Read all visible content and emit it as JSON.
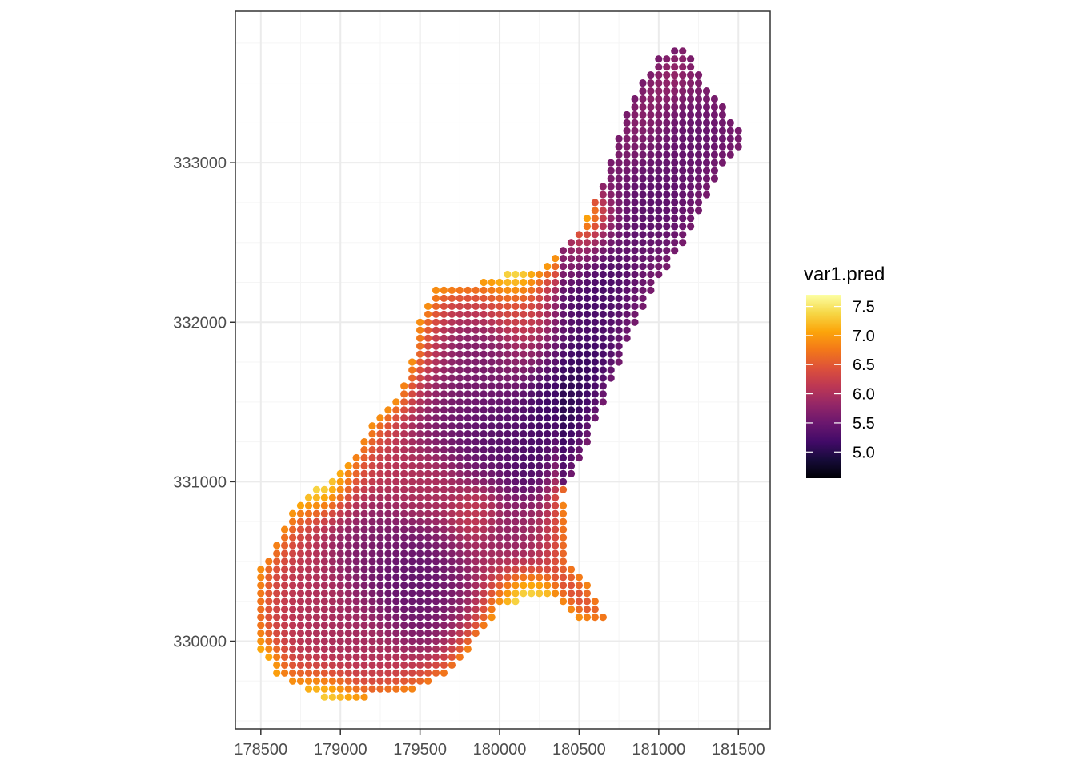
{
  "chart_data": {
    "type": "scatter",
    "title": "",
    "xlabel": "",
    "ylabel": "",
    "x_ticks": [
      178500,
      179000,
      179500,
      180000,
      180500,
      181000,
      181500
    ],
    "y_ticks": [
      330000,
      331000,
      332000,
      333000
    ],
    "x_tick_labels": [
      "178500",
      "179000",
      "179500",
      "180000",
      "180500",
      "181000",
      "181500"
    ],
    "y_tick_labels": [
      "330000",
      "331000",
      "332000",
      "333000"
    ],
    "xlim": [
      178340,
      181700
    ],
    "ylim": [
      329450,
      333950
    ],
    "grid": true,
    "grid_spacing_data": [
      250,
      500
    ],
    "grid_step": 50,
    "colormap": "inferno",
    "legend": {
      "title": "var1.pred",
      "placement": "right",
      "range": [
        4.55,
        7.7
      ],
      "breaks": [
        5.0,
        5.5,
        6.0,
        6.5,
        7.0,
        7.5
      ],
      "labels": [
        "5.0",
        "5.5",
        "6.0",
        "6.5",
        "7.0",
        "7.5"
      ]
    },
    "colors": {
      "panel_border": "#333333",
      "grid_major": "#ebebeb",
      "grid_minor": "#f5f5f5",
      "tick_text": "#4d4d4d"
    },
    "region_outline": [
      [
        178460,
        330150
      ],
      [
        178500,
        330450
      ],
      [
        178700,
        330800
      ],
      [
        178850,
        330950
      ],
      [
        179050,
        331100
      ],
      [
        179200,
        331350
      ],
      [
        179350,
        331500
      ],
      [
        179450,
        331750
      ],
      [
        179500,
        332000
      ],
      [
        179600,
        332200
      ],
      [
        179900,
        332250
      ],
      [
        180050,
        332300
      ],
      [
        180300,
        332350
      ],
      [
        180450,
        332500
      ],
      [
        180600,
        332750
      ],
      [
        180700,
        333000
      ],
      [
        180800,
        333300
      ],
      [
        180900,
        333500
      ],
      [
        181000,
        333650
      ],
      [
        181160,
        333730
      ],
      [
        181300,
        333500
      ],
      [
        181450,
        333300
      ],
      [
        181540,
        333150
      ],
      [
        181400,
        332950
      ],
      [
        181200,
        332550
      ],
      [
        181000,
        332250
      ],
      [
        180800,
        331850
      ],
      [
        180600,
        331350
      ],
      [
        180450,
        331000
      ],
      [
        180400,
        330900
      ],
      [
        180450,
        330500
      ],
      [
        180600,
        330300
      ],
      [
        180700,
        330100
      ],
      [
        180500,
        330150
      ],
      [
        180300,
        330300
      ],
      [
        180000,
        330200
      ],
      [
        179850,
        330000
      ],
      [
        179700,
        329800
      ],
      [
        179500,
        329700
      ],
      [
        179200,
        329650
      ],
      [
        178900,
        329650
      ],
      [
        178600,
        329780
      ],
      [
        178500,
        329950
      ]
    ],
    "field_anchors": [
      {
        "x": 180450,
        "y": 331400,
        "value": 4.65,
        "radius": 250
      },
      {
        "x": 180650,
        "y": 331700,
        "value": 4.75,
        "radius": 230
      },
      {
        "x": 180300,
        "y": 331050,
        "value": 4.8,
        "radius": 200
      },
      {
        "x": 180600,
        "y": 332200,
        "value": 5.0,
        "radius": 260
      },
      {
        "x": 181000,
        "y": 332700,
        "value": 5.2,
        "radius": 320
      },
      {
        "x": 181300,
        "y": 333150,
        "value": 5.3,
        "radius": 250
      },
      {
        "x": 179800,
        "y": 331700,
        "value": 5.5,
        "radius": 220
      },
      {
        "x": 179700,
        "y": 331400,
        "value": 5.4,
        "radius": 220
      },
      {
        "x": 180000,
        "y": 331300,
        "value": 5.2,
        "radius": 230
      },
      {
        "x": 179400,
        "y": 330400,
        "value": 5.3,
        "radius": 260
      },
      {
        "x": 179600,
        "y": 330200,
        "value": 5.4,
        "radius": 220
      },
      {
        "x": 179200,
        "y": 330600,
        "value": 5.6,
        "radius": 200
      },
      {
        "x": 180150,
        "y": 330700,
        "value": 5.7,
        "radius": 180
      },
      {
        "x": 179850,
        "y": 330800,
        "value": 6.2,
        "radius": 110
      },
      {
        "x": 178800,
        "y": 330200,
        "value": 6.0,
        "radius": 250
      },
      {
        "x": 179100,
        "y": 330000,
        "value": 5.9,
        "radius": 230
      },
      {
        "x": 180150,
        "y": 332100,
        "value": 6.3,
        "radius": 150
      },
      {
        "x": 180450,
        "y": 332450,
        "value": 6.1,
        "radius": 150
      },
      {
        "x": 179500,
        "y": 331000,
        "value": 6.0,
        "radius": 170
      }
    ],
    "edge_profile": {
      "base_value": 6.0,
      "edge_value": 6.9,
      "edge_width": 120,
      "bright_spots": [
        {
          "x": 180150,
          "y": 330300,
          "value": 7.5,
          "radius": 180
        },
        {
          "x": 180100,
          "y": 332280,
          "value": 7.4,
          "radius": 160
        },
        {
          "x": 178900,
          "y": 329650,
          "value": 7.3,
          "radius": 170
        },
        {
          "x": 178900,
          "y": 330950,
          "value": 7.4,
          "radius": 170
        },
        {
          "x": 178500,
          "y": 329850,
          "value": 7.2,
          "radius": 140
        },
        {
          "x": 180550,
          "y": 332650,
          "value": 7.1,
          "radius": 150
        }
      ],
      "dark_edge_side": {
        "x_min": 180350,
        "value_cap": 5.6
      }
    }
  }
}
